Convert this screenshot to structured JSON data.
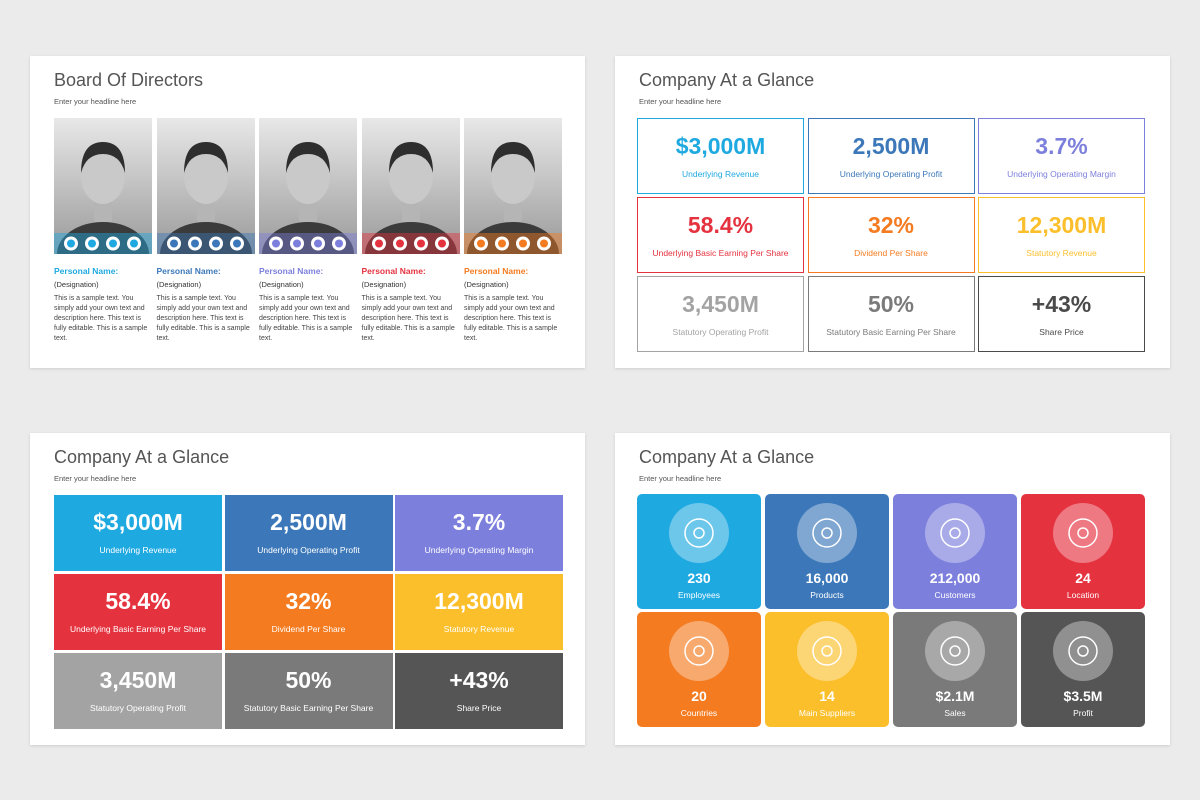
{
  "slides": [
    {
      "title": "Board Of Directors",
      "subtitle": "Enter your headline here",
      "members": [
        {
          "name": "Personal Name:",
          "designation": "(Designation)",
          "text": "This is a sample text. You simply add your own text and description here. This text is fully editable. This is a sample text.",
          "color": "#1fa9e1"
        },
        {
          "name": "Personal Name:",
          "designation": "(Designation)",
          "text": "This is a sample text. You simply add your own text and description here. This text is fully editable. This is a sample text.",
          "color": "#3c78b9"
        },
        {
          "name": "Personal Name:",
          "designation": "(Designation)",
          "text": "This is a sample text. You simply add your own text and description here. This text is fully editable. This is a sample text.",
          "color": "#7c7fdc"
        },
        {
          "name": "Personal Name:",
          "designation": "(Designation)",
          "text": "This is a sample text. You simply add your own text and description here. This text is fully editable. This is a sample text.",
          "color": "#e5323f"
        },
        {
          "name": "Personal Name:",
          "designation": "(Designation)",
          "text": "This is a sample text. You simply add your own text and description here. This text is fully editable. This is a sample text.",
          "color": "#f47b20"
        }
      ]
    },
    {
      "title": "Company At a Glance",
      "subtitle": "Enter your headline here",
      "style": "outline",
      "tiles": [
        {
          "value": "$3,000M",
          "label": "Underlying Revenue",
          "color": "#1fa9e1"
        },
        {
          "value": "2,500M",
          "label": "Underlying Operating Profit",
          "color": "#3c78b9"
        },
        {
          "value": "3.7%",
          "label": "Underlying Operating Margin",
          "color": "#7c7fdc"
        },
        {
          "value": "58.4%",
          "label": "Underlying Basic Earning Per Share",
          "color": "#e5323f"
        },
        {
          "value": "32%",
          "label": "Dividend Per Share",
          "color": "#f47b20"
        },
        {
          "value": "12,300M",
          "label": "Statutory Revenue",
          "color": "#fbbf2c"
        },
        {
          "value": "3,450M",
          "label": "Statutory Operating Profit",
          "color": "#a3a3a3"
        },
        {
          "value": "50%",
          "label": "Statutory Basic Earning Per Share",
          "color": "#7a7a7a"
        },
        {
          "value": "+43%",
          "label": "Share Price",
          "color": "#4a4a4a"
        }
      ]
    },
    {
      "title": "Company At a Glance",
      "subtitle": "Enter your headline here",
      "style": "filled",
      "tiles": [
        {
          "value": "$3,000M",
          "label": "Underlying Revenue",
          "color": "#1fa9e1"
        },
        {
          "value": "2,500M",
          "label": "Underlying Operating Profit",
          "color": "#3c78b9"
        },
        {
          "value": "3.7%",
          "label": "Underlying Operating Margin",
          "color": "#7c7fdc"
        },
        {
          "value": "58.4%",
          "label": "Underlying Basic Earning Per Share",
          "color": "#e5323f"
        },
        {
          "value": "32%",
          "label": "Dividend Per Share",
          "color": "#f47b20"
        },
        {
          "value": "12,300M",
          "label": "Statutory Revenue",
          "color": "#fbbf2c"
        },
        {
          "value": "3,450M",
          "label": "Statutory Operating Profit",
          "color": "#a3a3a3"
        },
        {
          "value": "50%",
          "label": "Statutory Basic Earning Per Share",
          "color": "#7a7a7a"
        },
        {
          "value": "+43%",
          "label": "Share Price",
          "color": "#555555"
        }
      ]
    },
    {
      "title": "Company At a Glance",
      "subtitle": "Enter your headline here",
      "style": "icons",
      "tiles": [
        {
          "value": "230",
          "label": "Employees",
          "color": "#1fa9e1"
        },
        {
          "value": "16,000",
          "label": "Products",
          "color": "#3c78b9"
        },
        {
          "value": "212,000",
          "label": "Customers",
          "color": "#7c7fdc"
        },
        {
          "value": "24",
          "label": "Location",
          "color": "#e5323f"
        },
        {
          "value": "20",
          "label": "Countries",
          "color": "#f47b20"
        },
        {
          "value": "14",
          "label": "Main Suppliers",
          "color": "#fbbf2c"
        },
        {
          "value": "$2.1M",
          "label": "Sales",
          "color": "#7a7a7a"
        },
        {
          "value": "$3.5M",
          "label": "Profit",
          "color": "#555555"
        }
      ]
    }
  ]
}
